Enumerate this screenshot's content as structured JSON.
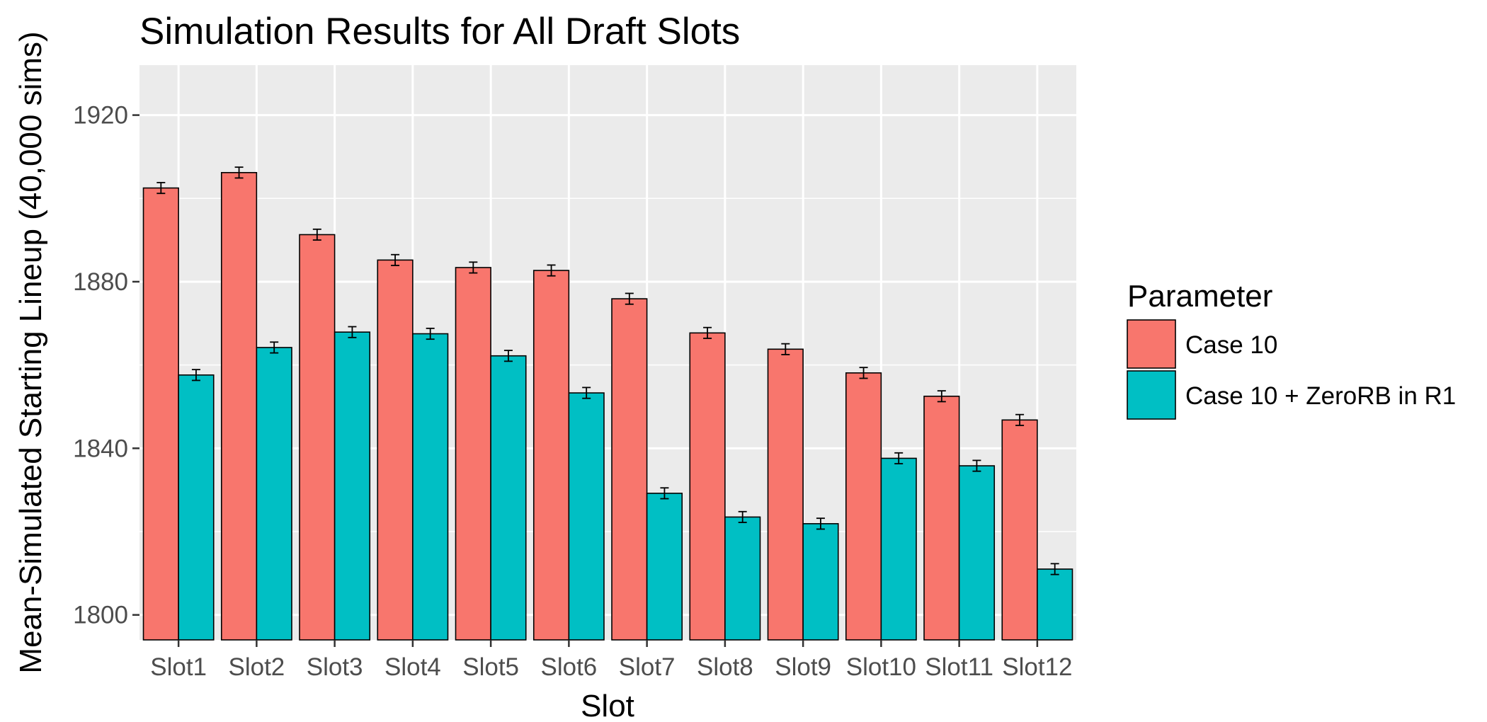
{
  "chart_data": {
    "type": "bar",
    "title": "Simulation Results for All Draft Slots",
    "xlabel": "Slot",
    "ylabel": "Mean-Simulated Starting Lineup (40,000 sims)",
    "categories": [
      "Slot1",
      "Slot2",
      "Slot3",
      "Slot4",
      "Slot5",
      "Slot6",
      "Slot7",
      "Slot8",
      "Slot9",
      "Slot10",
      "Slot11",
      "Slot12"
    ],
    "series": [
      {
        "name": "Case 10",
        "color": "#F8766D",
        "values": [
          1902.5,
          1906.2,
          1891.3,
          1885.2,
          1883.4,
          1882.7,
          1875.9,
          1867.7,
          1863.8,
          1858.1,
          1852.5,
          1846.8
        ],
        "error": [
          1.3,
          1.3,
          1.3,
          1.3,
          1.3,
          1.3,
          1.3,
          1.3,
          1.3,
          1.3,
          1.3,
          1.3
        ]
      },
      {
        "name": "Case 10 + ZeroRB in R1",
        "color": "#00BFC4",
        "values": [
          1857.6,
          1864.2,
          1867.9,
          1867.5,
          1862.2,
          1853.3,
          1829.2,
          1823.5,
          1821.9,
          1837.6,
          1835.8,
          1811.0
        ],
        "error": [
          1.3,
          1.3,
          1.3,
          1.3,
          1.3,
          1.3,
          1.3,
          1.3,
          1.3,
          1.3,
          1.3,
          1.3
        ]
      }
    ],
    "ylim": [
      1794,
      1932
    ],
    "yticks": [
      1800,
      1840,
      1880,
      1920
    ],
    "grid": true,
    "legend": {
      "title": "Parameter",
      "position": "right"
    },
    "panel_background": "#EBEBEB",
    "grid_color": "#FFFFFF"
  }
}
